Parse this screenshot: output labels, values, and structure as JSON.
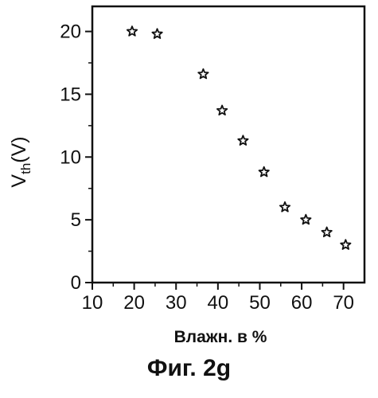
{
  "caption": "Фиг. 2g",
  "chart_data": {
    "type": "scatter",
    "xlabel": "Влажн. в %",
    "ylabel": {
      "main": "V",
      "sub": "th",
      "suffix": "(V)"
    },
    "xlim": [
      10,
      75
    ],
    "ylim": [
      0,
      22
    ],
    "xticks": [
      10,
      20,
      30,
      40,
      50,
      60,
      70
    ],
    "yticks": [
      0,
      5,
      10,
      15,
      20
    ],
    "marker": "star",
    "grid": false,
    "points": [
      {
        "x": 19.5,
        "y": 20.0
      },
      {
        "x": 25.5,
        "y": 19.8
      },
      {
        "x": 36.5,
        "y": 16.6
      },
      {
        "x": 41.0,
        "y": 13.7
      },
      {
        "x": 46.0,
        "y": 11.3
      },
      {
        "x": 51.0,
        "y": 8.8
      },
      {
        "x": 56.0,
        "y": 6.0
      },
      {
        "x": 61.0,
        "y": 5.0
      },
      {
        "x": 66.0,
        "y": 4.0
      },
      {
        "x": 70.5,
        "y": 3.0
      }
    ]
  }
}
